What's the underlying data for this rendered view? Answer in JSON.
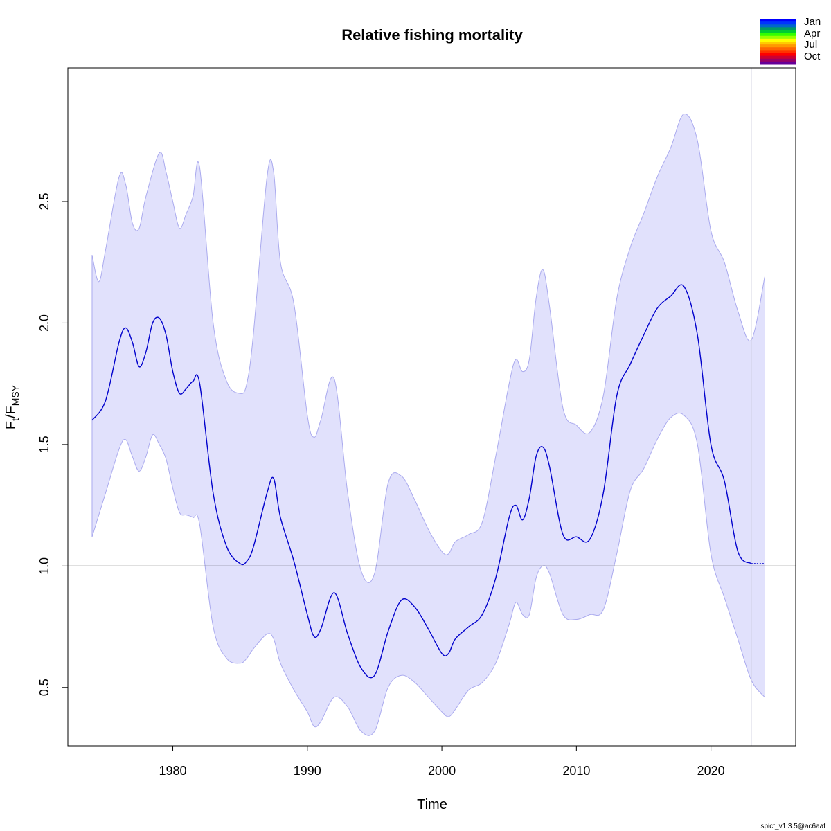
{
  "chart_data": {
    "type": "area",
    "title": "Relative fishing mortality",
    "xlabel": "Time",
    "ylabel_main": "F",
    "ylabel_sub1": "t",
    "ylabel_sep": "/F",
    "ylabel_sub2": "MSY",
    "xlim": [
      1972.2,
      2026.3
    ],
    "ylim": [
      0.26,
      3.05
    ],
    "xticks": [
      1980,
      1990,
      2000,
      2010,
      2020
    ],
    "xtick_labels": [
      "1980",
      "1990",
      "2000",
      "2010",
      "2020"
    ],
    "yticks": [
      0.5,
      1.0,
      1.5,
      2.0,
      2.5
    ],
    "ytick_labels": [
      "0.5",
      "1.0",
      "1.5",
      "2.0",
      "2.5"
    ],
    "reference_line": 1.0,
    "forecast_start": 2023.0,
    "grid": false,
    "legend_position": "top-right (outside plot)",
    "legend": [
      "Jan",
      "Apr",
      "Jul",
      "Oct"
    ],
    "legend_colors": [
      "#0000ff",
      "#0033ff",
      "#0066cc",
      "#009966",
      "#00cc33",
      "#33ff00",
      "#99ff00",
      "#ffff00",
      "#ffcc00",
      "#ff9900",
      "#ff6600",
      "#ff3300",
      "#ff0000",
      "#cc0033",
      "#990066",
      "#660099"
    ],
    "colors": {
      "estimate": "#0000cc",
      "band": "#e1e1fc",
      "band_edge": "#aaaaee",
      "reference": "#000000"
    },
    "series": [
      {
        "name": "F/Fmsy",
        "x": [
          1974,
          1975,
          1976,
          1976.5,
          1977,
          1977.5,
          1978,
          1978.5,
          1979,
          1979.5,
          1980,
          1980.5,
          1981,
          1981.5,
          1982,
          1983,
          1984,
          1985,
          1985.5,
          1986,
          1987,
          1987.5,
          1988,
          1989,
          1990,
          1990.5,
          1991,
          1992,
          1993,
          1994,
          1995,
          1996,
          1997,
          1998,
          1999,
          2000,
          2000.5,
          2001,
          2002,
          2003,
          2004,
          2005,
          2005.5,
          2006,
          2006.5,
          2007,
          2007.5,
          2008,
          2009,
          2010,
          2011,
          2012,
          2013,
          2014,
          2015,
          2016,
          2017,
          2018,
          2019,
          2020,
          2021,
          2022,
          2023
        ],
        "values": [
          1.6,
          1.68,
          1.92,
          1.98,
          1.92,
          1.82,
          1.88,
          2.0,
          2.02,
          1.95,
          1.8,
          1.71,
          1.73,
          1.76,
          1.75,
          1.3,
          1.08,
          1.01,
          1.02,
          1.08,
          1.3,
          1.36,
          1.2,
          1.02,
          0.8,
          0.71,
          0.74,
          0.89,
          0.72,
          0.58,
          0.55,
          0.73,
          0.86,
          0.83,
          0.74,
          0.64,
          0.64,
          0.7,
          0.75,
          0.8,
          0.95,
          1.2,
          1.25,
          1.19,
          1.28,
          1.45,
          1.49,
          1.41,
          1.13,
          1.12,
          1.11,
          1.3,
          1.7,
          1.83,
          1.95,
          2.06,
          2.11,
          2.15,
          1.95,
          1.5,
          1.35,
          1.06,
          1.01
        ]
      },
      {
        "name": "upper",
        "x": [
          1974,
          1974.5,
          1975,
          1976,
          1976.5,
          1977,
          1977.5,
          1978,
          1979,
          1979.5,
          1980,
          1980.5,
          1981,
          1981.5,
          1982,
          1983,
          1984,
          1985,
          1985.5,
          1986,
          1987,
          1987.5,
          1988,
          1989,
          1990,
          1990.5,
          1991,
          1992,
          1993,
          1994,
          1995,
          1996,
          1997,
          1998,
          1999,
          2000,
          2000.5,
          2001,
          2002,
          2003,
          2004,
          2005,
          2005.5,
          2006,
          2006.5,
          2007,
          2007.5,
          2008,
          2009,
          2010,
          2011,
          2012,
          2013,
          2014,
          2015,
          2016,
          2017,
          2018,
          2019,
          2020,
          2021,
          2022,
          2023,
          2024
        ],
        "values": [
          2.28,
          2.17,
          2.3,
          2.6,
          2.57,
          2.41,
          2.39,
          2.52,
          2.7,
          2.62,
          2.5,
          2.39,
          2.45,
          2.52,
          2.64,
          2.0,
          1.76,
          1.71,
          1.75,
          1.96,
          2.6,
          2.62,
          2.25,
          2.08,
          1.62,
          1.53,
          1.6,
          1.77,
          1.3,
          0.98,
          0.97,
          1.34,
          1.37,
          1.27,
          1.15,
          1.06,
          1.05,
          1.1,
          1.13,
          1.18,
          1.45,
          1.75,
          1.85,
          1.8,
          1.85,
          2.1,
          2.22,
          2.07,
          1.65,
          1.58,
          1.55,
          1.7,
          2.1,
          2.31,
          2.45,
          2.6,
          2.72,
          2.86,
          2.75,
          2.38,
          2.25,
          2.05,
          1.93,
          2.19
        ]
      },
      {
        "name": "lower",
        "x": [
          1974,
          1975,
          1976,
          1976.5,
          1977,
          1977.5,
          1978,
          1978.5,
          1979,
          1979.5,
          1980,
          1980.5,
          1981,
          1981.5,
          1982,
          1983,
          1984,
          1985,
          1985.5,
          1986,
          1987,
          1987.5,
          1988,
          1989,
          1990,
          1990.5,
          1991,
          1992,
          1993,
          1994,
          1995,
          1996,
          1997,
          1998,
          1999,
          2000,
          2000.5,
          2001,
          2002,
          2003,
          2004,
          2005,
          2005.5,
          2006,
          2006.5,
          2007,
          2007.5,
          2008,
          2009,
          2010,
          2011,
          2012,
          2013,
          2014,
          2015,
          2016,
          2017,
          2018,
          2019,
          2020,
          2021,
          2022,
          2023,
          2024
        ],
        "values": [
          1.12,
          1.3,
          1.48,
          1.52,
          1.45,
          1.39,
          1.45,
          1.54,
          1.5,
          1.44,
          1.32,
          1.22,
          1.21,
          1.2,
          1.17,
          0.75,
          0.62,
          0.6,
          0.62,
          0.66,
          0.72,
          0.7,
          0.6,
          0.49,
          0.4,
          0.34,
          0.36,
          0.46,
          0.42,
          0.32,
          0.32,
          0.5,
          0.55,
          0.52,
          0.46,
          0.4,
          0.38,
          0.41,
          0.49,
          0.52,
          0.6,
          0.76,
          0.85,
          0.8,
          0.8,
          0.95,
          1.0,
          0.97,
          0.8,
          0.78,
          0.8,
          0.82,
          1.05,
          1.31,
          1.4,
          1.52,
          1.61,
          1.62,
          1.5,
          1.05,
          0.87,
          0.7,
          0.53,
          0.46
        ]
      },
      {
        "name": "forecast",
        "x": [
          2023,
          2024
        ],
        "values": [
          1.01,
          1.01
        ]
      }
    ]
  },
  "footer": "spict_v1.3.5@ac6aaf"
}
